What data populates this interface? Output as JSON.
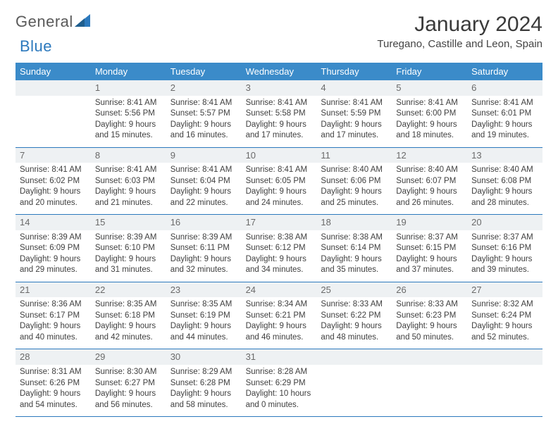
{
  "brand": {
    "name1": "General",
    "name2": "Blue"
  },
  "title": "January 2024",
  "location": "Turegano, Castille and Leon, Spain",
  "colors": {
    "header_bg": "#3b8bc9",
    "header_text": "#ffffff",
    "daynum_bg": "#eef1f3",
    "body_text": "#3f3f3f",
    "rule": "#2c79bd",
    "brand_blue": "#2c79bd"
  },
  "day_headers": [
    "Sunday",
    "Monday",
    "Tuesday",
    "Wednesday",
    "Thursday",
    "Friday",
    "Saturday"
  ],
  "weeks": [
    [
      {
        "n": "",
        "sr": "",
        "ss": "",
        "d1": "",
        "d2": ""
      },
      {
        "n": "1",
        "sr": "Sunrise: 8:41 AM",
        "ss": "Sunset: 5:56 PM",
        "d1": "Daylight: 9 hours",
        "d2": "and 15 minutes."
      },
      {
        "n": "2",
        "sr": "Sunrise: 8:41 AM",
        "ss": "Sunset: 5:57 PM",
        "d1": "Daylight: 9 hours",
        "d2": "and 16 minutes."
      },
      {
        "n": "3",
        "sr": "Sunrise: 8:41 AM",
        "ss": "Sunset: 5:58 PM",
        "d1": "Daylight: 9 hours",
        "d2": "and 17 minutes."
      },
      {
        "n": "4",
        "sr": "Sunrise: 8:41 AM",
        "ss": "Sunset: 5:59 PM",
        "d1": "Daylight: 9 hours",
        "d2": "and 17 minutes."
      },
      {
        "n": "5",
        "sr": "Sunrise: 8:41 AM",
        "ss": "Sunset: 6:00 PM",
        "d1": "Daylight: 9 hours",
        "d2": "and 18 minutes."
      },
      {
        "n": "6",
        "sr": "Sunrise: 8:41 AM",
        "ss": "Sunset: 6:01 PM",
        "d1": "Daylight: 9 hours",
        "d2": "and 19 minutes."
      }
    ],
    [
      {
        "n": "7",
        "sr": "Sunrise: 8:41 AM",
        "ss": "Sunset: 6:02 PM",
        "d1": "Daylight: 9 hours",
        "d2": "and 20 minutes."
      },
      {
        "n": "8",
        "sr": "Sunrise: 8:41 AM",
        "ss": "Sunset: 6:03 PM",
        "d1": "Daylight: 9 hours",
        "d2": "and 21 minutes."
      },
      {
        "n": "9",
        "sr": "Sunrise: 8:41 AM",
        "ss": "Sunset: 6:04 PM",
        "d1": "Daylight: 9 hours",
        "d2": "and 22 minutes."
      },
      {
        "n": "10",
        "sr": "Sunrise: 8:41 AM",
        "ss": "Sunset: 6:05 PM",
        "d1": "Daylight: 9 hours",
        "d2": "and 24 minutes."
      },
      {
        "n": "11",
        "sr": "Sunrise: 8:40 AM",
        "ss": "Sunset: 6:06 PM",
        "d1": "Daylight: 9 hours",
        "d2": "and 25 minutes."
      },
      {
        "n": "12",
        "sr": "Sunrise: 8:40 AM",
        "ss": "Sunset: 6:07 PM",
        "d1": "Daylight: 9 hours",
        "d2": "and 26 minutes."
      },
      {
        "n": "13",
        "sr": "Sunrise: 8:40 AM",
        "ss": "Sunset: 6:08 PM",
        "d1": "Daylight: 9 hours",
        "d2": "and 28 minutes."
      }
    ],
    [
      {
        "n": "14",
        "sr": "Sunrise: 8:39 AM",
        "ss": "Sunset: 6:09 PM",
        "d1": "Daylight: 9 hours",
        "d2": "and 29 minutes."
      },
      {
        "n": "15",
        "sr": "Sunrise: 8:39 AM",
        "ss": "Sunset: 6:10 PM",
        "d1": "Daylight: 9 hours",
        "d2": "and 31 minutes."
      },
      {
        "n": "16",
        "sr": "Sunrise: 8:39 AM",
        "ss": "Sunset: 6:11 PM",
        "d1": "Daylight: 9 hours",
        "d2": "and 32 minutes."
      },
      {
        "n": "17",
        "sr": "Sunrise: 8:38 AM",
        "ss": "Sunset: 6:12 PM",
        "d1": "Daylight: 9 hours",
        "d2": "and 34 minutes."
      },
      {
        "n": "18",
        "sr": "Sunrise: 8:38 AM",
        "ss": "Sunset: 6:14 PM",
        "d1": "Daylight: 9 hours",
        "d2": "and 35 minutes."
      },
      {
        "n": "19",
        "sr": "Sunrise: 8:37 AM",
        "ss": "Sunset: 6:15 PM",
        "d1": "Daylight: 9 hours",
        "d2": "and 37 minutes."
      },
      {
        "n": "20",
        "sr": "Sunrise: 8:37 AM",
        "ss": "Sunset: 6:16 PM",
        "d1": "Daylight: 9 hours",
        "d2": "and 39 minutes."
      }
    ],
    [
      {
        "n": "21",
        "sr": "Sunrise: 8:36 AM",
        "ss": "Sunset: 6:17 PM",
        "d1": "Daylight: 9 hours",
        "d2": "and 40 minutes."
      },
      {
        "n": "22",
        "sr": "Sunrise: 8:35 AM",
        "ss": "Sunset: 6:18 PM",
        "d1": "Daylight: 9 hours",
        "d2": "and 42 minutes."
      },
      {
        "n": "23",
        "sr": "Sunrise: 8:35 AM",
        "ss": "Sunset: 6:19 PM",
        "d1": "Daylight: 9 hours",
        "d2": "and 44 minutes."
      },
      {
        "n": "24",
        "sr": "Sunrise: 8:34 AM",
        "ss": "Sunset: 6:21 PM",
        "d1": "Daylight: 9 hours",
        "d2": "and 46 minutes."
      },
      {
        "n": "25",
        "sr": "Sunrise: 8:33 AM",
        "ss": "Sunset: 6:22 PM",
        "d1": "Daylight: 9 hours",
        "d2": "and 48 minutes."
      },
      {
        "n": "26",
        "sr": "Sunrise: 8:33 AM",
        "ss": "Sunset: 6:23 PM",
        "d1": "Daylight: 9 hours",
        "d2": "and 50 minutes."
      },
      {
        "n": "27",
        "sr": "Sunrise: 8:32 AM",
        "ss": "Sunset: 6:24 PM",
        "d1": "Daylight: 9 hours",
        "d2": "and 52 minutes."
      }
    ],
    [
      {
        "n": "28",
        "sr": "Sunrise: 8:31 AM",
        "ss": "Sunset: 6:26 PM",
        "d1": "Daylight: 9 hours",
        "d2": "and 54 minutes."
      },
      {
        "n": "29",
        "sr": "Sunrise: 8:30 AM",
        "ss": "Sunset: 6:27 PM",
        "d1": "Daylight: 9 hours",
        "d2": "and 56 minutes."
      },
      {
        "n": "30",
        "sr": "Sunrise: 8:29 AM",
        "ss": "Sunset: 6:28 PM",
        "d1": "Daylight: 9 hours",
        "d2": "and 58 minutes."
      },
      {
        "n": "31",
        "sr": "Sunrise: 8:28 AM",
        "ss": "Sunset: 6:29 PM",
        "d1": "Daylight: 10 hours",
        "d2": "and 0 minutes."
      },
      {
        "n": "",
        "sr": "",
        "ss": "",
        "d1": "",
        "d2": ""
      },
      {
        "n": "",
        "sr": "",
        "ss": "",
        "d1": "",
        "d2": ""
      },
      {
        "n": "",
        "sr": "",
        "ss": "",
        "d1": "",
        "d2": ""
      }
    ]
  ]
}
